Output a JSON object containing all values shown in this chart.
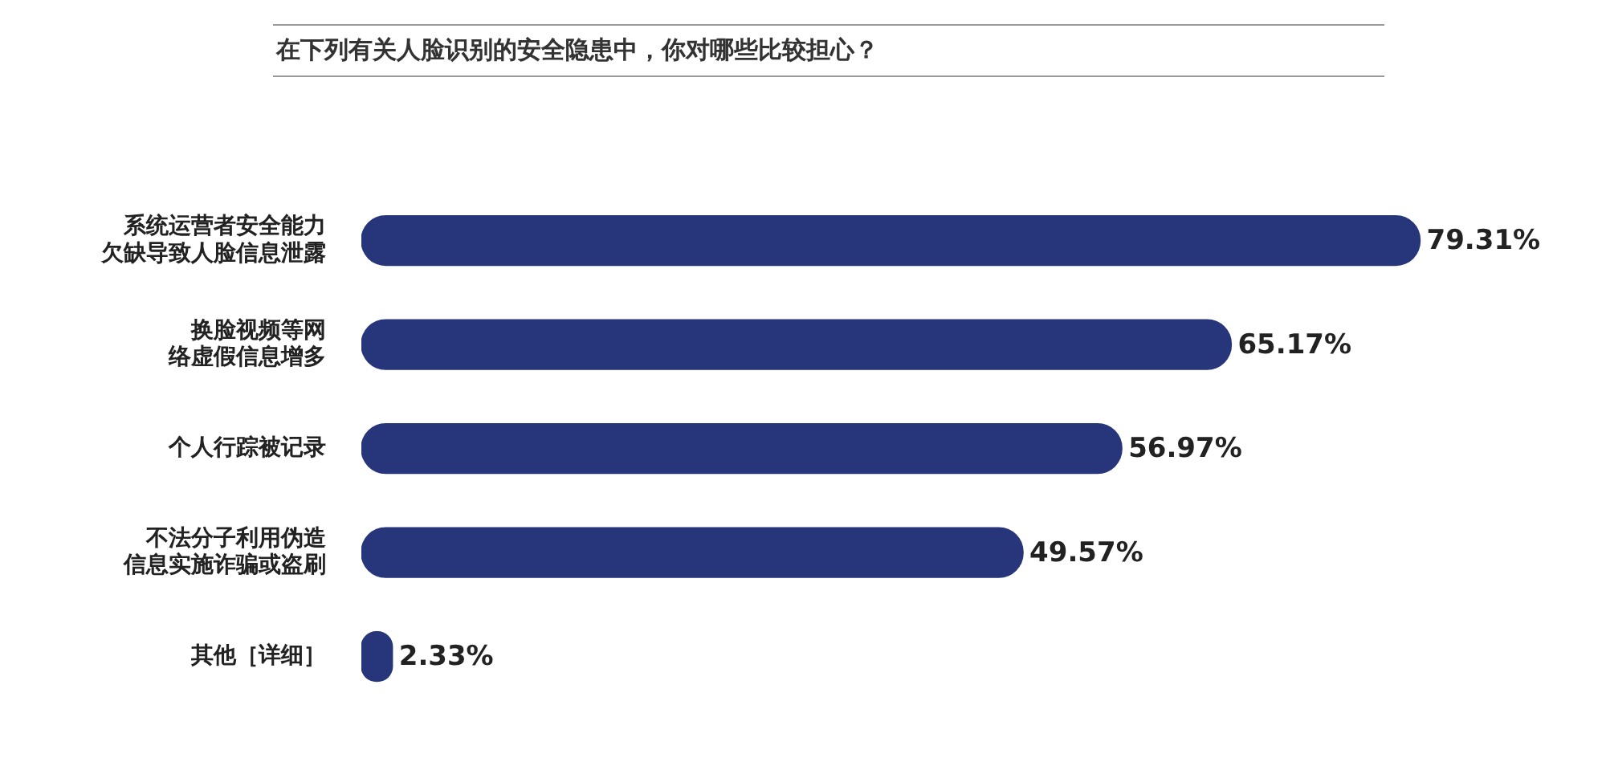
{
  "chart_data": {
    "type": "bar",
    "orientation": "horizontal",
    "title": "在下列有关人脸识别的安全隐患中，你对哪些比较担心？",
    "categories": [
      "系统运营者安全能力欠缺导致人脸信息泄露",
      "换脸视频等网络虚假信息增多",
      "个人行踪被记录",
      "不法分子利用伪造信息实施诈骗或盗刷",
      "其他［详细］"
    ],
    "values": [
      79.31,
      65.17,
      56.97,
      49.57,
      2.33
    ],
    "value_labels": [
      "79.31%",
      "65.17%",
      "56.97%",
      "49.57%",
      "2.33%"
    ],
    "color": "#27357a",
    "legend": false
  }
}
